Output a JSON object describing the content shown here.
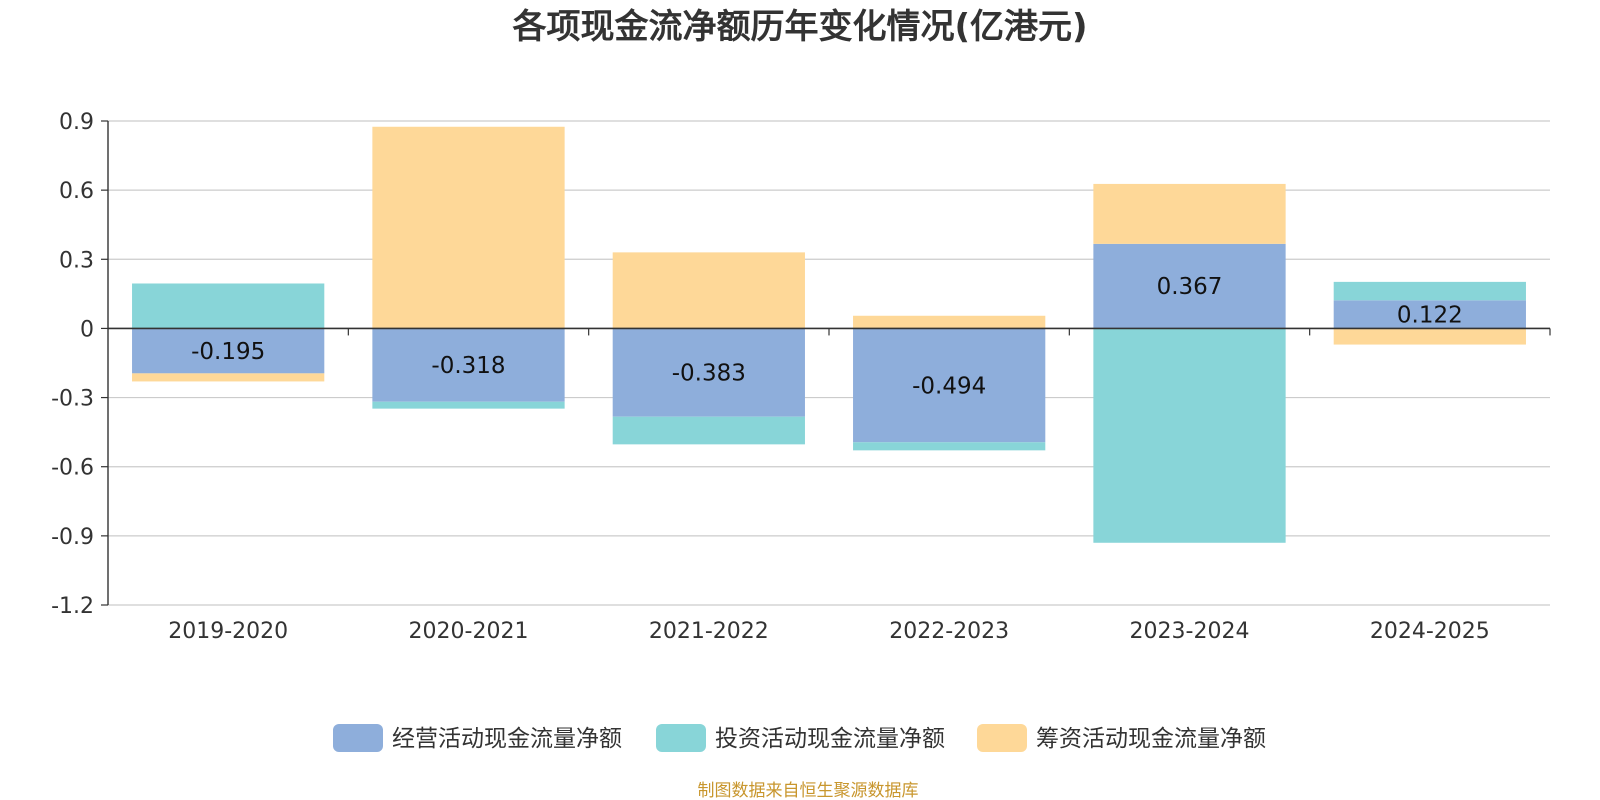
{
  "chart_data": {
    "type": "bar",
    "stacked": true,
    "title": "各项现金流净额历年变化情况(亿港元)",
    "xlabel": "",
    "ylabel": "",
    "categories": [
      "2019-2020",
      "2020-2021",
      "2021-2022",
      "2022-2023",
      "2023-2024",
      "2024-2025"
    ],
    "ylim": [
      -1.2,
      0.9
    ],
    "yticks": [
      0.9,
      0.6,
      0.3,
      0,
      -0.3,
      -0.6,
      -0.9,
      -1.2
    ],
    "grid": true,
    "legend_position": "bottom-center",
    "series": [
      {
        "name": "经营活动现金流量净额",
        "color": "#8eaedb",
        "values": [
          -0.195,
          -0.318,
          -0.383,
          -0.494,
          0.367,
          0.122
        ],
        "labels": [
          "-0.195",
          "-0.318",
          "-0.383",
          "-0.494",
          "0.367",
          "0.122"
        ]
      },
      {
        "name": "投资活动现金流量净额",
        "color": "#88d5d8",
        "values": [
          0.195,
          -0.03,
          -0.12,
          -0.035,
          -0.93,
          0.08
        ]
      },
      {
        "name": "筹资活动现金流量净额",
        "color": "#fed898",
        "values": [
          -0.035,
          0.875,
          0.33,
          0.055,
          0.26,
          -0.07
        ]
      }
    ]
  },
  "footer": {
    "source": "制图数据来自恒生聚源数据库"
  }
}
